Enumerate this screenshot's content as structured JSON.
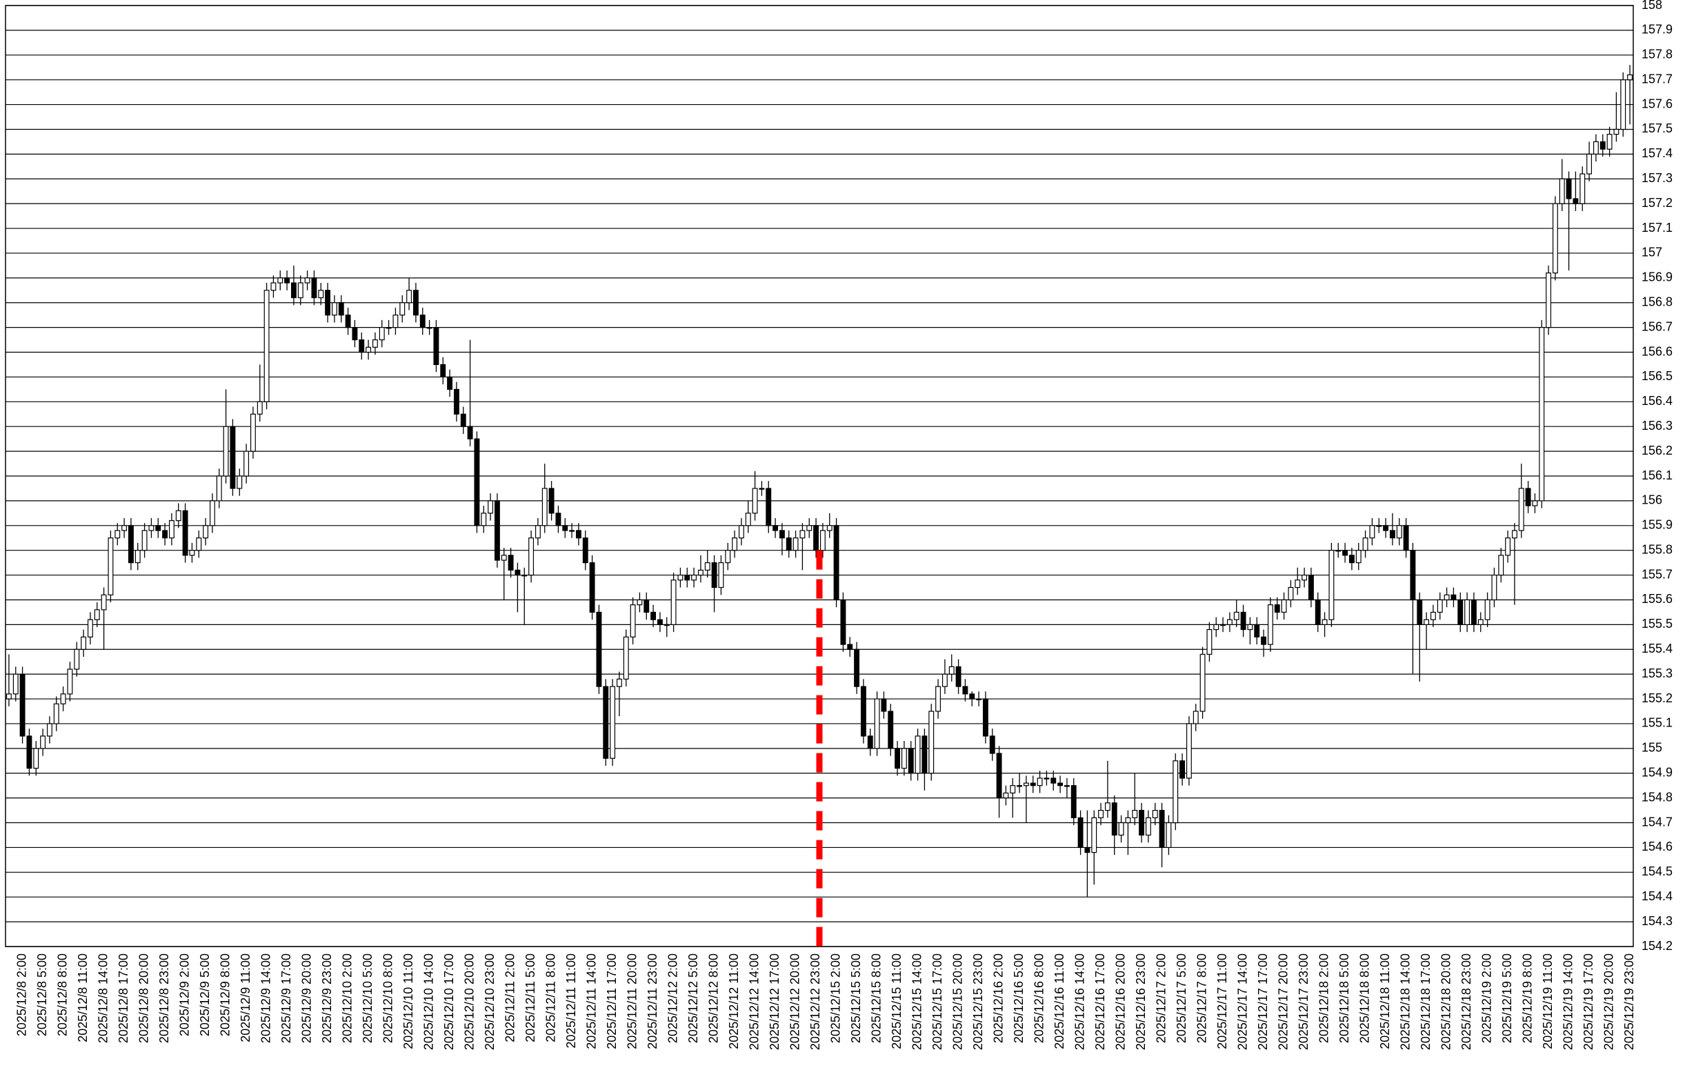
{
  "chart_data": {
    "type": "candlestick",
    "categories": [
      null,
      null,
      "2025/12/8 2:00",
      null,
      null,
      "2025/12/8 5:00",
      null,
      null,
      "2025/12/8 8:00",
      null,
      null,
      "2025/12/8 11:00",
      null,
      null,
      "2025/12/8 14:00",
      null,
      null,
      "2025/12/8 17:00",
      null,
      null,
      "2025/12/8 20:00",
      null,
      null,
      "2025/12/8 23:00",
      null,
      null,
      "2025/12/9 2:00",
      null,
      null,
      "2025/12/9 5:00",
      null,
      null,
      "2025/12/9 8:00",
      null,
      null,
      "2025/12/9 11:00",
      null,
      null,
      "2025/12/9 14:00",
      null,
      null,
      "2025/12/9 17:00",
      null,
      null,
      "2025/12/9 20:00",
      null,
      null,
      "2025/12/9 23:00",
      null,
      null,
      "2025/12/10 2:00",
      null,
      null,
      "2025/12/10 5:00",
      null,
      null,
      "2025/12/10 8:00",
      null,
      null,
      "2025/12/10 11:00",
      null,
      null,
      "2025/12/10 14:00",
      null,
      null,
      "2025/12/10 17:00",
      null,
      null,
      "2025/12/10 20:00",
      null,
      null,
      "2025/12/10 23:00",
      null,
      null,
      "2025/12/11 2:00",
      null,
      null,
      "2025/12/11 5:00",
      null,
      null,
      "2025/12/11 8:00",
      null,
      null,
      "2025/12/11 11:00",
      null,
      null,
      "2025/12/11 14:00",
      null,
      null,
      "2025/12/11 17:00",
      null,
      null,
      "2025/12/11 20:00",
      null,
      null,
      "2025/12/11 23:00",
      null,
      null,
      "2025/12/12 2:00",
      null,
      null,
      "2025/12/12 5:00",
      null,
      null,
      "2025/12/12 8:00",
      null,
      null,
      "2025/12/12 11:00",
      null,
      null,
      "2025/12/12 14:00",
      null,
      null,
      "2025/12/12 17:00",
      null,
      null,
      "2025/12/12 20:00",
      null,
      null,
      "2025/12/12 23:00",
      null,
      null,
      "2025/12/15 2:00",
      null,
      null,
      "2025/12/15 5:00",
      null,
      null,
      "2025/12/15 8:00",
      null,
      null,
      "2025/12/15 11:00",
      null,
      null,
      "2025/12/15 14:00",
      null,
      null,
      "2025/12/15 17:00",
      null,
      null,
      "2025/12/15 20:00",
      null,
      null,
      "2025/12/15 23:00",
      null,
      null,
      "2025/12/16 2:00",
      null,
      null,
      "2025/12/16 5:00",
      null,
      null,
      "2025/12/16 8:00",
      null,
      null,
      "2025/12/16 11:00",
      null,
      null,
      "2025/12/16 14:00",
      null,
      null,
      "2025/12/16 17:00",
      null,
      null,
      "2025/12/16 20:00",
      null,
      null,
      "2025/12/16 23:00",
      null,
      null,
      "2025/12/17 2:00",
      null,
      null,
      "2025/12/17 5:00",
      null,
      null,
      "2025/12/17 8:00",
      null,
      null,
      "2025/12/17 11:00",
      null,
      null,
      "2025/12/17 14:00",
      null,
      null,
      "2025/12/17 17:00",
      null,
      null,
      "2025/12/17 20:00",
      null,
      null,
      "2025/12/17 23:00",
      null,
      null,
      "2025/12/18 2:00",
      null,
      null,
      "2025/12/18 5:00",
      null,
      null,
      "2025/12/18 8:00",
      null,
      null,
      "2025/12/18 11:00",
      null,
      null,
      "2025/12/18 14:00",
      null,
      null,
      "2025/12/18 17:00",
      null,
      null,
      "2025/12/18 20:00",
      null,
      null,
      "2025/12/18 23:00",
      null,
      null,
      "2025/12/19 2:00",
      null,
      null,
      "2025/12/19 5:00",
      null,
      null,
      "2025/12/19 8:00",
      null,
      null,
      "2025/12/19 11:00",
      null,
      null,
      "2025/12/19 14:00",
      null,
      null,
      "2025/12/19 17:00",
      null,
      null,
      "2025/12/19 20:00",
      null,
      null,
      "2025/12/19 23:00"
    ],
    "open": [
      155.2,
      155.22,
      155.3,
      155.05,
      154.92,
      155.0,
      155.05,
      155.1,
      155.18,
      155.22,
      155.32,
      155.4,
      155.45,
      155.52,
      155.56,
      155.62,
      155.85,
      155.88,
      155.9,
      155.75,
      155.8,
      155.88,
      155.9,
      155.88,
      155.85,
      155.92,
      155.96,
      155.78,
      155.8,
      155.85,
      155.9,
      156.0,
      156.1,
      156.3,
      156.05,
      156.1,
      156.2,
      156.35,
      156.4,
      156.85,
      156.88,
      156.9,
      156.88,
      156.82,
      156.88,
      156.9,
      156.82,
      156.85,
      156.75,
      156.8,
      156.75,
      156.7,
      156.65,
      156.6,
      156.62,
      156.65,
      156.7,
      156.7,
      156.75,
      156.8,
      156.85,
      156.75,
      156.7,
      156.7,
      156.55,
      156.5,
      156.45,
      156.35,
      156.3,
      156.25,
      155.9,
      155.95,
      156.0,
      155.76,
      155.78,
      155.72,
      155.7,
      155.7,
      155.85,
      155.9,
      156.05,
      155.95,
      155.9,
      155.88,
      155.88,
      155.85,
      155.75,
      155.55,
      155.25,
      154.96,
      155.25,
      155.28,
      155.45,
      155.58,
      155.6,
      155.55,
      155.52,
      155.5,
      155.5,
      155.68,
      155.7,
      155.68,
      155.7,
      155.72,
      155.75,
      155.65,
      155.75,
      155.8,
      155.85,
      155.9,
      155.95,
      156.05,
      156.05,
      155.9,
      155.88,
      155.85,
      155.8,
      155.85,
      155.88,
      155.9,
      155.8,
      155.88,
      155.9,
      155.6,
      155.42,
      155.4,
      155.25,
      155.05,
      155.0,
      155.2,
      155.15,
      155.0,
      154.92,
      155.0,
      154.9,
      155.05,
      154.9,
      155.15,
      155.25,
      155.3,
      155.33,
      155.25,
      155.22,
      155.2,
      155.2,
      155.05,
      154.98,
      154.8,
      154.82,
      154.85,
      154.85,
      154.86,
      154.85,
      154.88,
      154.88,
      154.86,
      154.85,
      154.85,
      154.72,
      154.6,
      154.58,
      154.72,
      154.75,
      154.78,
      154.65,
      154.7,
      154.72,
      154.75,
      154.65,
      154.72,
      154.75,
      154.6,
      154.7,
      154.95,
      154.88,
      155.1,
      155.15,
      155.38,
      155.48,
      155.5,
      155.5,
      155.52,
      155.55,
      155.48,
      155.5,
      155.45,
      155.42,
      155.58,
      155.55,
      155.6,
      155.65,
      155.68,
      155.7,
      155.6,
      155.5,
      155.52,
      155.8,
      155.8,
      155.78,
      155.75,
      155.8,
      155.85,
      155.9,
      155.9,
      155.88,
      155.85,
      155.9,
      155.8,
      155.6,
      155.5,
      155.52,
      155.55,
      155.6,
      155.62,
      155.6,
      155.5,
      155.6,
      155.5,
      155.52,
      155.6,
      155.7,
      155.78,
      155.85,
      155.88,
      156.05,
      155.98,
      156.0,
      156.7,
      156.92,
      157.2,
      157.3,
      157.22,
      157.2,
      157.32,
      157.4,
      157.45,
      157.42,
      157.48,
      157.5,
      157.7
    ],
    "high": [
      155.38,
      155.33,
      155.33,
      155.08,
      155.03,
      155.08,
      155.13,
      155.21,
      155.25,
      155.35,
      155.43,
      155.48,
      155.55,
      155.59,
      155.65,
      155.88,
      155.91,
      155.93,
      155.93,
      155.83,
      155.91,
      155.93,
      155.93,
      155.91,
      155.95,
      155.99,
      155.99,
      155.83,
      155.88,
      155.93,
      156.03,
      156.13,
      156.45,
      156.33,
      156.13,
      156.23,
      156.38,
      156.55,
      156.88,
      156.91,
      156.93,
      156.93,
      156.95,
      156.91,
      156.93,
      156.93,
      156.88,
      156.88,
      156.83,
      156.83,
      156.78,
      156.73,
      156.68,
      156.65,
      156.68,
      156.73,
      156.73,
      156.78,
      156.83,
      156.9,
      156.88,
      156.78,
      156.73,
      156.73,
      156.58,
      156.53,
      156.48,
      156.38,
      156.65,
      156.28,
      155.98,
      156.03,
      156.03,
      155.81,
      155.81,
      155.75,
      155.73,
      155.88,
      155.93,
      156.15,
      156.08,
      155.98,
      155.93,
      155.91,
      155.91,
      155.88,
      155.78,
      155.58,
      155.28,
      155.28,
      155.31,
      155.48,
      155.61,
      155.63,
      155.63,
      155.58,
      155.55,
      155.53,
      155.71,
      155.73,
      155.73,
      155.73,
      155.78,
      155.8,
      155.78,
      155.78,
      155.83,
      155.88,
      155.93,
      156.0,
      156.12,
      156.08,
      156.08,
      155.93,
      155.91,
      155.88,
      155.88,
      155.91,
      155.93,
      155.93,
      155.91,
      155.95,
      155.93,
      155.63,
      155.45,
      155.43,
      155.28,
      155.08,
      155.23,
      155.23,
      155.18,
      155.03,
      155.03,
      155.03,
      155.08,
      155.08,
      155.18,
      155.28,
      155.36,
      155.38,
      155.36,
      155.28,
      155.23,
      155.23,
      155.23,
      155.08,
      155.01,
      154.85,
      154.88,
      154.9,
      154.89,
      154.89,
      154.91,
      154.91,
      154.91,
      154.89,
      154.88,
      154.88,
      154.75,
      154.75,
      154.75,
      154.78,
      154.95,
      154.81,
      154.73,
      154.75,
      154.9,
      154.78,
      154.75,
      154.78,
      154.78,
      154.73,
      154.98,
      154.98,
      155.13,
      155.18,
      155.41,
      155.51,
      155.53,
      155.53,
      155.55,
      155.6,
      155.58,
      155.53,
      155.53,
      155.48,
      155.61,
      155.61,
      155.63,
      155.68,
      155.73,
      155.73,
      155.73,
      155.63,
      155.55,
      155.83,
      155.83,
      155.83,
      155.81,
      155.83,
      155.88,
      155.93,
      155.93,
      155.93,
      155.95,
      155.93,
      155.93,
      155.83,
      155.63,
      155.55,
      155.58,
      155.63,
      155.65,
      155.65,
      155.63,
      155.63,
      155.63,
      155.55,
      155.63,
      155.73,
      155.81,
      155.88,
      155.91,
      156.15,
      156.08,
      156.03,
      156.73,
      156.95,
      157.23,
      157.38,
      157.33,
      157.33,
      157.35,
      157.45,
      157.48,
      157.48,
      157.51,
      157.65,
      157.73,
      157.76
    ],
    "low": [
      155.17,
      155.19,
      155.02,
      154.89,
      154.89,
      154.97,
      155.02,
      155.07,
      155.15,
      155.19,
      155.29,
      155.37,
      155.42,
      155.49,
      155.4,
      155.59,
      155.82,
      155.85,
      155.72,
      155.72,
      155.77,
      155.85,
      155.85,
      155.82,
      155.82,
      155.89,
      155.75,
      155.75,
      155.77,
      155.82,
      155.87,
      155.97,
      156.07,
      156.02,
      156.02,
      156.07,
      156.17,
      156.32,
      156.37,
      156.82,
      156.85,
      156.85,
      156.79,
      156.79,
      156.85,
      156.79,
      156.79,
      156.72,
      156.72,
      156.72,
      156.67,
      156.62,
      156.57,
      156.57,
      156.59,
      156.62,
      156.67,
      156.67,
      156.72,
      156.77,
      156.72,
      156.67,
      156.67,
      156.52,
      156.47,
      156.42,
      156.32,
      156.27,
      156.22,
      155.87,
      155.87,
      155.92,
      155.73,
      155.6,
      155.69,
      155.55,
      155.5,
      155.67,
      155.82,
      155.87,
      155.92,
      155.87,
      155.85,
      155.85,
      155.82,
      155.72,
      155.52,
      155.22,
      154.93,
      154.93,
      155.13,
      155.25,
      155.42,
      155.55,
      155.52,
      155.49,
      155.47,
      155.45,
      155.47,
      155.65,
      155.65,
      155.65,
      155.67,
      155.69,
      155.55,
      155.62,
      155.72,
      155.77,
      155.82,
      155.87,
      155.92,
      156.02,
      155.87,
      155.85,
      155.78,
      155.77,
      155.77,
      155.72,
      155.85,
      155.77,
      155.77,
      155.85,
      155.57,
      155.39,
      155.37,
      155.22,
      155.02,
      154.97,
      154.97,
      155.12,
      154.97,
      154.89,
      154.89,
      154.87,
      154.87,
      154.83,
      154.87,
      155.12,
      155.22,
      155.27,
      155.22,
      155.19,
      155.17,
      155.17,
      155.02,
      154.95,
      154.72,
      154.77,
      154.72,
      154.82,
      154.7,
      154.82,
      154.82,
      154.85,
      154.83,
      154.82,
      154.8,
      154.69,
      154.57,
      154.4,
      154.45,
      154.69,
      154.72,
      154.57,
      154.62,
      154.57,
      154.69,
      154.62,
      154.62,
      154.69,
      154.52,
      154.57,
      154.67,
      154.85,
      154.85,
      155.07,
      155.12,
      155.35,
      155.45,
      155.47,
      155.47,
      155.49,
      155.45,
      155.42,
      155.42,
      155.37,
      155.39,
      155.52,
      155.52,
      155.57,
      155.62,
      155.65,
      155.57,
      155.47,
      155.45,
      155.49,
      155.77,
      155.75,
      155.72,
      155.72,
      155.77,
      155.82,
      155.87,
      155.85,
      155.82,
      155.82,
      155.77,
      155.3,
      155.27,
      155.4,
      155.49,
      155.52,
      155.57,
      155.57,
      155.47,
      155.47,
      155.47,
      155.47,
      155.49,
      155.57,
      155.67,
      155.75,
      155.58,
      155.85,
      155.95,
      155.95,
      155.97,
      156.67,
      156.89,
      157.17,
      156.93,
      157.17,
      157.17,
      157.29,
      157.37,
      157.39,
      157.39,
      157.45,
      157.47,
      157.52
    ],
    "close": [
      155.22,
      155.3,
      155.05,
      154.92,
      155.0,
      155.05,
      155.1,
      155.18,
      155.22,
      155.32,
      155.4,
      155.45,
      155.52,
      155.56,
      155.62,
      155.85,
      155.88,
      155.9,
      155.75,
      155.8,
      155.88,
      155.9,
      155.88,
      155.85,
      155.92,
      155.96,
      155.78,
      155.8,
      155.85,
      155.9,
      156.0,
      156.1,
      156.3,
      156.05,
      156.1,
      156.2,
      156.35,
      156.4,
      156.85,
      156.88,
      156.9,
      156.88,
      156.82,
      156.88,
      156.9,
      156.82,
      156.85,
      156.75,
      156.8,
      156.75,
      156.7,
      156.65,
      156.6,
      156.62,
      156.65,
      156.7,
      156.7,
      156.75,
      156.8,
      156.85,
      156.75,
      156.7,
      156.7,
      156.55,
      156.5,
      156.45,
      156.35,
      156.3,
      156.25,
      155.9,
      155.95,
      156.0,
      155.76,
      155.78,
      155.72,
      155.7,
      155.7,
      155.85,
      155.9,
      156.05,
      155.95,
      155.9,
      155.88,
      155.88,
      155.85,
      155.75,
      155.55,
      155.25,
      154.96,
      155.25,
      155.28,
      155.45,
      155.58,
      155.6,
      155.55,
      155.52,
      155.5,
      155.5,
      155.68,
      155.7,
      155.68,
      155.7,
      155.72,
      155.75,
      155.65,
      155.75,
      155.8,
      155.85,
      155.9,
      155.95,
      156.05,
      156.05,
      155.9,
      155.88,
      155.85,
      155.8,
      155.85,
      155.88,
      155.9,
      155.8,
      155.88,
      155.9,
      155.6,
      155.42,
      155.4,
      155.25,
      155.05,
      155.0,
      155.2,
      155.15,
      155.0,
      154.92,
      155.0,
      154.9,
      155.05,
      154.9,
      155.15,
      155.25,
      155.3,
      155.33,
      155.25,
      155.22,
      155.2,
      155.2,
      155.05,
      154.98,
      154.8,
      154.82,
      154.85,
      154.85,
      154.86,
      154.85,
      154.88,
      154.88,
      154.86,
      154.85,
      154.85,
      154.72,
      154.6,
      154.58,
      154.72,
      154.75,
      154.78,
      154.65,
      154.7,
      154.72,
      154.75,
      154.65,
      154.72,
      154.75,
      154.6,
      154.7,
      154.95,
      154.88,
      155.1,
      155.15,
      155.38,
      155.48,
      155.5,
      155.5,
      155.52,
      155.55,
      155.48,
      155.5,
      155.45,
      155.42,
      155.58,
      155.55,
      155.6,
      155.65,
      155.68,
      155.7,
      155.6,
      155.5,
      155.52,
      155.8,
      155.8,
      155.78,
      155.75,
      155.8,
      155.85,
      155.9,
      155.9,
      155.88,
      155.85,
      155.9,
      155.8,
      155.6,
      155.5,
      155.52,
      155.55,
      155.6,
      155.62,
      155.6,
      155.5,
      155.6,
      155.5,
      155.52,
      155.6,
      155.7,
      155.78,
      155.85,
      155.88,
      156.05,
      155.98,
      156.0,
      156.7,
      156.92,
      157.2,
      157.3,
      157.22,
      157.2,
      157.32,
      157.4,
      157.45,
      157.42,
      157.48,
      157.5,
      157.7,
      157.72
    ],
    "up_color": "#ffffff",
    "down_color": "#000000",
    "ylim": [
      154.2,
      158
    ],
    "yticks": [
      154.2,
      154.3,
      154.4,
      154.5,
      154.6,
      154.7,
      154.8,
      154.9,
      155,
      155.1,
      155.2,
      155.3,
      155.4,
      155.5,
      155.6,
      155.7,
      155.8,
      155.9,
      156,
      156.1,
      156.2,
      156.3,
      156.4,
      156.5,
      156.6,
      156.7,
      156.8,
      156.9,
      157,
      157.1,
      157.2,
      157.3,
      157.4,
      157.5,
      157.6,
      157.7,
      157.8,
      157.9,
      158
    ],
    "grid": true
  }
}
